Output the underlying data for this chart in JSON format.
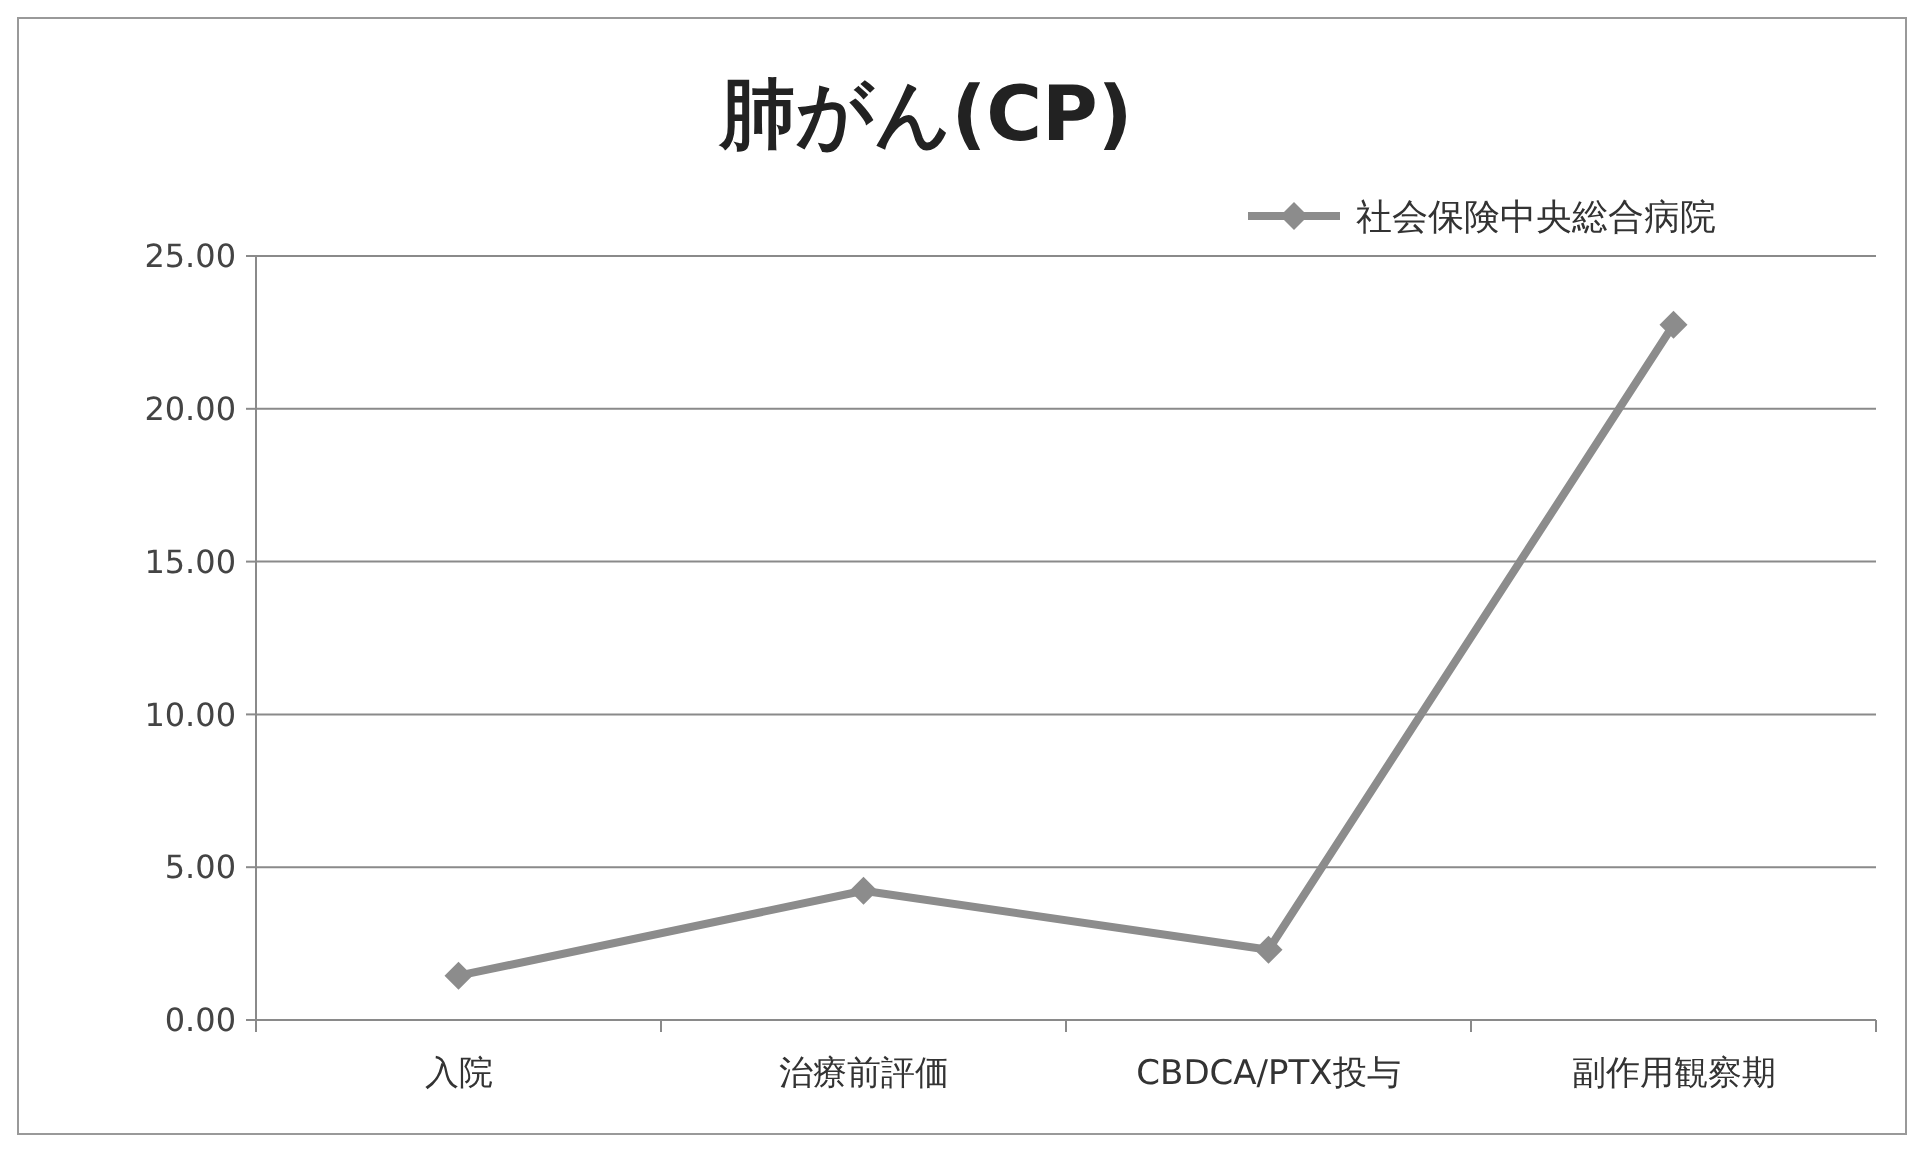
{
  "chart_data": {
    "type": "line",
    "title": "肺がん(CP)",
    "categories": [
      "入院",
      "治療前評価",
      "CBDCA/PTX投与",
      "副作用観察期"
    ],
    "series": [
      {
        "name": "社会保険中央総合病院",
        "color": "#8c8c8c",
        "values": [
          1.45,
          4.23,
          2.3,
          22.75
        ]
      }
    ],
    "ylim": [
      0,
      25
    ],
    "yticks": [
      {
        "value": 0,
        "label": "0.00"
      },
      {
        "value": 5,
        "label": "5.00"
      },
      {
        "value": 10,
        "label": "10.00"
      },
      {
        "value": 15,
        "label": "15.00"
      },
      {
        "value": 20,
        "label": "20.00"
      },
      {
        "value": 25,
        "label": "25.00"
      }
    ],
    "grid": "y",
    "legend": "top right",
    "marker": "diamond",
    "line_style": "solid"
  }
}
